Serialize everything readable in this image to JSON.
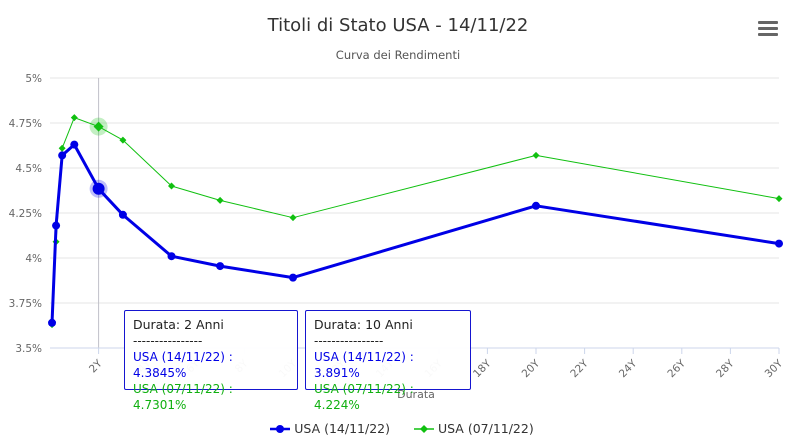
{
  "chart_data": {
    "type": "line",
    "title": "Titoli di Stato USA - 14/11/22",
    "subtitle": "Curva dei Rendimenti",
    "xlabel": "Durata",
    "ylabel": "",
    "xlim": [
      0,
      30
    ],
    "ylim": [
      3.5,
      5.0
    ],
    "y_ticks": [
      3.5,
      3.75,
      4.0,
      4.25,
      4.5,
      4.75,
      5.0
    ],
    "y_tick_labels": [
      "3.5%",
      "3.75%",
      "4%",
      "4.25%",
      "4.5%",
      "4.75%",
      "5%"
    ],
    "x_ticks": [
      2,
      4,
      6,
      8,
      10,
      12,
      14,
      16,
      18,
      20,
      22,
      24,
      26,
      28,
      30
    ],
    "x_tick_labels": [
      "2Y",
      "4Y",
      "6Y",
      "8Y",
      "10Y",
      "12Y",
      "14Y",
      "16Y",
      "18Y",
      "20Y",
      "22Y",
      "24Y",
      "26Y",
      "28Y",
      "30Y"
    ],
    "grid": true,
    "legend_position": "bottom",
    "crosshair_x": 2,
    "series": [
      {
        "name": "USA (14/11/22)",
        "color": "#0000e6",
        "marker": "circle",
        "x": [
          0.0833,
          0.25,
          0.5,
          1,
          2,
          3,
          5,
          7,
          10,
          20,
          30
        ],
        "y": [
          3.64,
          4.18,
          4.57,
          4.63,
          4.3845,
          4.24,
          4.01,
          3.955,
          3.891,
          4.29,
          4.08
        ]
      },
      {
        "name": "USA (07/11/22)",
        "color": "#10c010",
        "marker": "diamond",
        "x": [
          0.0833,
          0.25,
          0.5,
          1,
          2,
          3,
          5,
          7,
          10,
          20,
          30
        ],
        "y": [
          3.63,
          4.09,
          4.61,
          4.78,
          4.7301,
          4.655,
          4.4,
          4.32,
          4.224,
          4.57,
          4.33
        ]
      }
    ]
  },
  "tooltips": [
    {
      "title": "Durata: 2 Anni",
      "separator": "----------------",
      "line1": "USA (14/11/22) : 4.3845%",
      "line2": "USA (07/11/22) : 4.7301%"
    },
    {
      "title": "Durata: 10 Anni",
      "separator": "----------------",
      "line1": "USA (14/11/22) : 3.891%",
      "line2": "USA (07/11/22) : 4.224%"
    }
  ],
  "menu": {
    "icon": "hamburger-menu-icon"
  }
}
